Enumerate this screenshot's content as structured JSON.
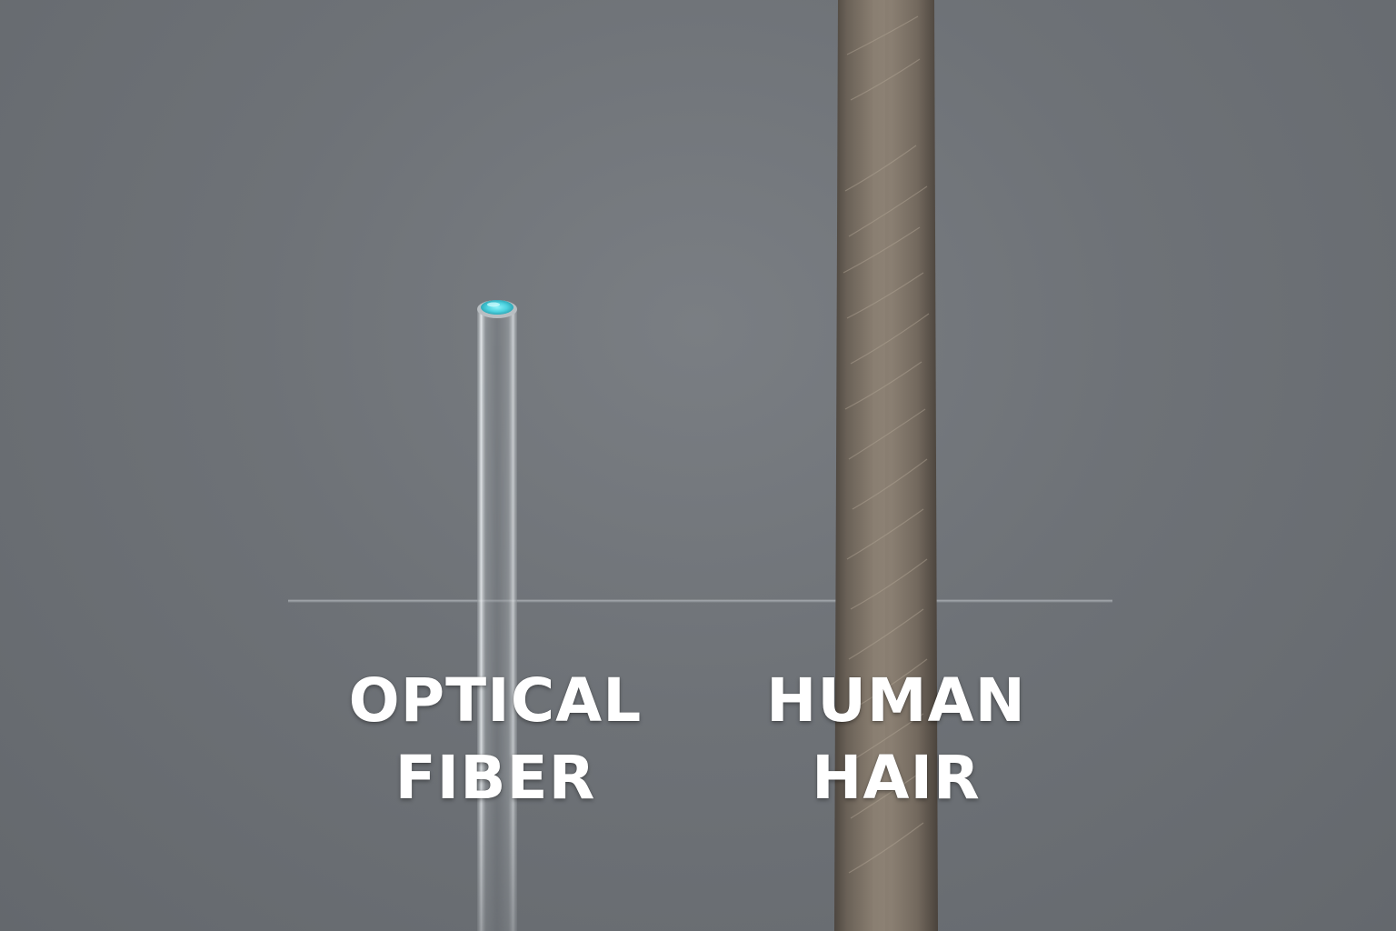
{
  "labels": {
    "optical_fiber": {
      "line1": "OPTICAL",
      "line2": "FIBER"
    },
    "human_hair": {
      "line1": "HUMAN",
      "line2": "HAIR"
    }
  },
  "colors": {
    "background": "#6e7277",
    "fiber_glass": "#a4a9ad",
    "fiber_core_glow": "#4fd3e0",
    "hair": "#7c7165",
    "label_text": "#ffffff",
    "baseline": "#a8acb1"
  }
}
